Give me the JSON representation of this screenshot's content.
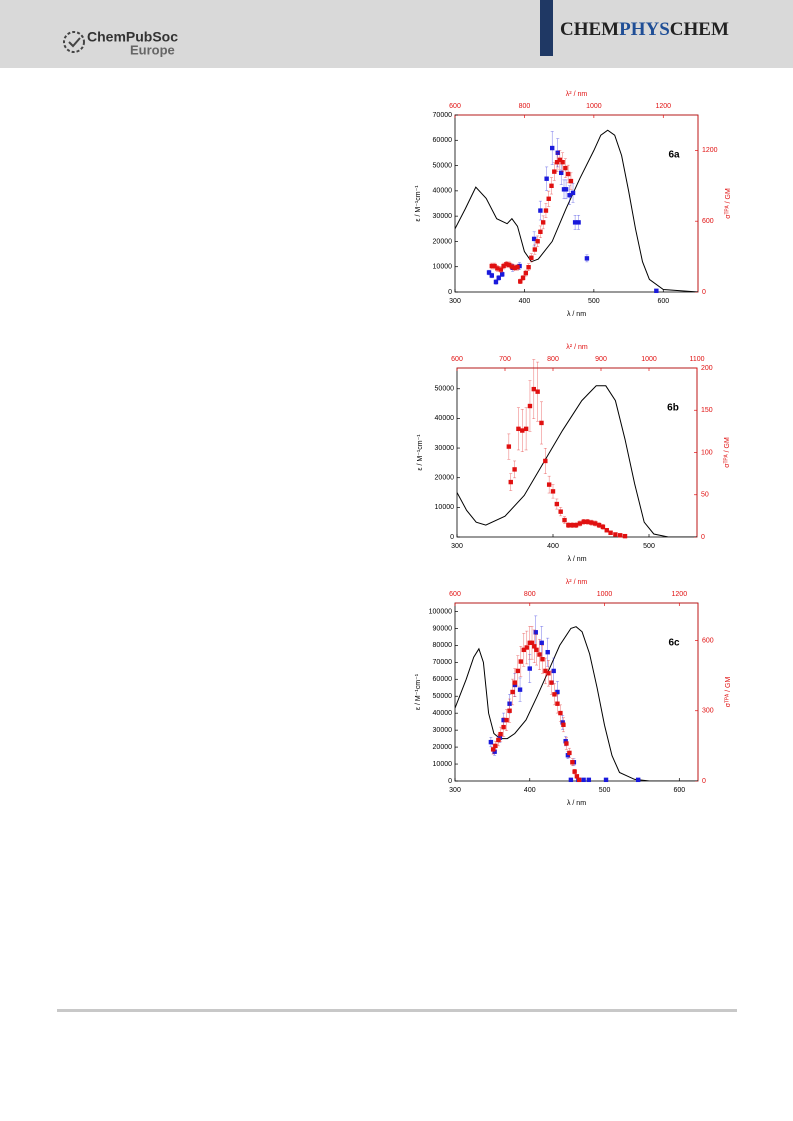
{
  "header": {
    "logo": {
      "name": "ChemPubSoc",
      "region": "Europe"
    },
    "journal": [
      "CHEM",
      "PHYS",
      "CHEM"
    ]
  },
  "chart_data": [
    {
      "type": "combo",
      "label": "6a",
      "xlabel": "λ / nm",
      "x2label": "λ² / nm",
      "ylabel": "ε / M⁻¹cm⁻¹",
      "y2label": "σᵀᴾᴬ / GM",
      "xlim": [
        300,
        650
      ],
      "xticks": [
        300,
        400,
        500,
        600
      ],
      "x2lim": [
        600,
        1300
      ],
      "x2ticks": [
        600,
        800,
        1000,
        1200
      ],
      "ylim": [
        0,
        70000
      ],
      "yticks": [
        0,
        10000,
        20000,
        30000,
        40000,
        50000,
        60000,
        70000
      ],
      "y2lim": [
        0,
        1500
      ],
      "y2ticks": [
        0,
        600,
        1200
      ],
      "series": [
        {
          "kind": "line",
          "color": "#000000",
          "x": [
            300,
            315,
            330,
            345,
            360,
            375,
            382,
            390,
            400,
            410,
            420,
            440,
            460,
            480,
            500,
            510,
            520,
            530,
            540,
            550,
            560,
            570,
            580,
            600,
            650
          ],
          "values": [
            25000,
            33000,
            41500,
            37000,
            29000,
            27000,
            29000,
            26000,
            16000,
            12000,
            13000,
            20000,
            33000,
            45000,
            56000,
            62000,
            64000,
            62000,
            54000,
            40000,
            25000,
            12000,
            5000,
            1000,
            0
          ]
        },
        {
          "kind": "points",
          "color": "#1a1adc",
          "axis": "y2",
          "x_axis": "x2",
          "x": [
            698,
            706,
            718,
            726,
            736,
            766,
            786,
            828,
            846,
            864,
            880,
            896,
            906,
            914,
            920,
            930,
            940,
            946,
            956,
            980,
            1180
          ],
          "values": [
            165,
            140,
            85,
            120,
            150,
            205,
            220,
            450,
            690,
            960,
            1220,
            1180,
            1010,
            870,
            870,
            820,
            840,
            590,
            590,
            285,
            10
          ],
          "errors": [
            20,
            20,
            20,
            20,
            20,
            30,
            30,
            60,
            80,
            100,
            140,
            120,
            100,
            80,
            80,
            80,
            80,
            60,
            60,
            30,
            10
          ]
        },
        {
          "kind": "points",
          "color": "#e01010",
          "axis": "y2",
          "x_axis": "x2",
          "x": [
            706,
            714,
            722,
            732,
            740,
            748,
            756,
            764,
            772,
            780,
            788,
            796,
            804,
            812,
            820,
            830,
            838,
            846,
            854,
            862,
            870,
            878,
            886,
            894,
            902,
            910,
            918,
            926,
            934
          ],
          "values": [
            220,
            220,
            200,
            190,
            220,
            235,
            230,
            215,
            205,
            210,
            90,
            120,
            160,
            210,
            290,
            360,
            430,
            510,
            590,
            690,
            790,
            900,
            1020,
            1100,
            1120,
            1100,
            1050,
            1000,
            940
          ],
          "errors": [
            25,
            25,
            25,
            25,
            25,
            25,
            25,
            25,
            25,
            25,
            20,
            20,
            25,
            30,
            35,
            40,
            45,
            50,
            55,
            60,
            65,
            70,
            75,
            80,
            80,
            80,
            80,
            75,
            70
          ]
        }
      ]
    },
    {
      "type": "combo",
      "label": "6b",
      "xlabel": "λ / nm",
      "x2label": "λ² / nm",
      "ylabel": "ε / M⁻¹cm⁻¹",
      "y2label": "σᵀᴾᴬ / GM",
      "xlim": [
        300,
        550
      ],
      "xticks": [
        300,
        400,
        500
      ],
      "x2lim": [
        600,
        1100
      ],
      "x2ticks": [
        600,
        700,
        800,
        900,
        1000,
        1100
      ],
      "ylim": [
        0,
        57000
      ],
      "yticks": [
        0,
        10000,
        20000,
        30000,
        40000,
        50000
      ],
      "y2lim": [
        0,
        200
      ],
      "y2ticks": [
        0,
        50,
        100,
        150,
        200
      ],
      "series": [
        {
          "kind": "line",
          "color": "#000000",
          "x": [
            300,
            310,
            320,
            330,
            350,
            370,
            390,
            410,
            430,
            445,
            455,
            465,
            475,
            485,
            495,
            505,
            520,
            550
          ],
          "values": [
            15000,
            9000,
            5000,
            4000,
            7000,
            14000,
            25000,
            36000,
            46000,
            51000,
            51000,
            46000,
            33000,
            18000,
            5000,
            1000,
            0,
            0
          ]
        },
        {
          "kind": "points",
          "color": "#e01010",
          "axis": "y2",
          "x_axis": "x2",
          "x": [
            708,
            712,
            720,
            728,
            736,
            744,
            752,
            760,
            768,
            776,
            784,
            792,
            800,
            808,
            816,
            824,
            832,
            840,
            848,
            856,
            864,
            872,
            880,
            888,
            896,
            904,
            912,
            920,
            930,
            940,
            950
          ],
          "values": [
            107,
            65,
            80,
            128,
            126,
            128,
            155,
            175,
            172,
            135,
            90,
            62,
            54,
            39,
            30,
            20,
            14,
            14,
            14,
            16,
            18,
            18,
            17,
            16,
            14,
            12,
            8,
            5,
            3,
            2,
            1
          ],
          "errors": [
            15,
            10,
            10,
            25,
            25,
            25,
            30,
            35,
            35,
            25,
            15,
            10,
            8,
            6,
            5,
            4,
            3,
            3,
            3,
            3,
            3,
            3,
            3,
            3,
            3,
            3,
            2,
            2,
            1,
            1,
            1
          ]
        }
      ]
    },
    {
      "type": "combo",
      "label": "6c",
      "xlabel": "λ / nm",
      "x2label": "λ² / nm",
      "ylabel": "ε / M⁻¹cm⁻¹",
      "y2label": "σᵀᴾᴬ / GM",
      "xlim": [
        300,
        625
      ],
      "xticks": [
        300,
        400,
        500,
        600
      ],
      "x2lim": [
        600,
        1250
      ],
      "x2ticks": [
        600,
        800,
        1000,
        1200
      ],
      "ylim": [
        0,
        105000
      ],
      "yticks": [
        0,
        10000,
        20000,
        30000,
        40000,
        50000,
        60000,
        70000,
        80000,
        90000,
        100000
      ],
      "y2lim": [
        0,
        760
      ],
      "y2ticks": [
        0,
        300,
        600
      ],
      "series": [
        {
          "kind": "line",
          "color": "#000000",
          "x": [
            300,
            315,
            325,
            332,
            338,
            345,
            352,
            360,
            370,
            380,
            395,
            410,
            425,
            440,
            455,
            462,
            470,
            480,
            490,
            500,
            510,
            520,
            540,
            560,
            625
          ],
          "values": [
            43000,
            60000,
            73000,
            78000,
            70000,
            40000,
            28000,
            25000,
            25000,
            28000,
            36000,
            50000,
            65000,
            80000,
            90000,
            91000,
            88000,
            75000,
            55000,
            33000,
            15000,
            5000,
            1000,
            0,
            0
          ]
        },
        {
          "kind": "points",
          "color": "#1a1adc",
          "axis": "y2",
          "x_axis": "x2",
          "x": [
            696,
            706,
            720,
            730,
            746,
            760,
            774,
            800,
            816,
            832,
            848,
            864,
            874,
            888,
            896,
            902,
            910,
            918,
            930,
            944,
            958,
            1004,
            1090
          ],
          "values": [
            166,
            125,
            185,
            260,
            330,
            410,
            390,
            480,
            635,
            590,
            550,
            470,
            380,
            250,
            170,
            110,
            5,
            80,
            5,
            5,
            5,
            5,
            5
          ],
          "errors": [
            20,
            15,
            20,
            30,
            40,
            50,
            50,
            60,
            70,
            70,
            60,
            55,
            45,
            30,
            20,
            15,
            2,
            15,
            2,
            2,
            2,
            2,
            2
          ]
        },
        {
          "kind": "points",
          "color": "#e01010",
          "axis": "y2",
          "x_axis": "x2",
          "x": [
            702,
            708,
            716,
            722,
            730,
            738,
            746,
            754,
            760,
            768,
            776,
            784,
            792,
            800,
            806,
            812,
            818,
            826,
            834,
            842,
            850,
            858,
            866,
            874,
            882,
            890,
            898,
            906,
            914,
            920,
            926,
            932
          ],
          "values": [
            135,
            150,
            175,
            200,
            230,
            260,
            300,
            380,
            420,
            470,
            510,
            560,
            570,
            590,
            590,
            575,
            560,
            540,
            520,
            470,
            460,
            420,
            370,
            330,
            290,
            240,
            160,
            120,
            80,
            40,
            20,
            5
          ],
          "errors": [
            20,
            20,
            25,
            30,
            40,
            45,
            50,
            55,
            60,
            65,
            65,
            70,
            70,
            70,
            70,
            70,
            65,
            65,
            60,
            55,
            55,
            50,
            45,
            40,
            35,
            30,
            25,
            20,
            15,
            10,
            5,
            2
          ]
        }
      ]
    }
  ]
}
